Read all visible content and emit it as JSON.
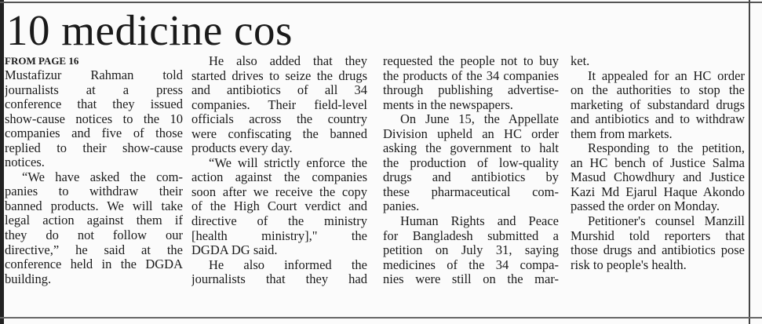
{
  "headline": "10 medicine cos",
  "kicker": "FROM PAGE 16",
  "columns": [
    [
      {
        "t": "Mustafizur Rahman told"
      },
      {
        "t": "journalists at a press"
      },
      {
        "t": "conference that they issued"
      },
      {
        "t": "show-cause notices to the 10"
      },
      {
        "t": "companies and five of those"
      },
      {
        "t": "replied to their show-cause"
      },
      {
        "t": "notices.",
        "last": true
      },
      {
        "t": "“We have asked the com-",
        "indent": true
      },
      {
        "t": "panies to withdraw their"
      },
      {
        "t": "banned products. We will take"
      },
      {
        "t": "legal action against them if"
      },
      {
        "t": "they do not follow our"
      },
      {
        "t": "directive,” he said at the"
      },
      {
        "t": "conference held in the DGDA"
      },
      {
        "t": "building.",
        "last": true
      }
    ],
    [
      {
        "t": "He also added that they",
        "indent": true
      },
      {
        "t": "started drives to seize the drugs"
      },
      {
        "t": "and antibiotics of all 34"
      },
      {
        "t": "companies. Their field-level"
      },
      {
        "t": "officials across the country"
      },
      {
        "t": "were confiscating the banned"
      },
      {
        "t": "products every day.",
        "last": true
      },
      {
        "t": "“We will strictly enforce the",
        "indent": true
      },
      {
        "t": "action against the companies"
      },
      {
        "t": "soon after we receive the copy"
      },
      {
        "t": "of the High Court verdict and"
      },
      {
        "t": "directive of the ministry"
      },
      {
        "t": "[health ministry],\" the"
      },
      {
        "t": "DGDA DG said.",
        "last": true
      },
      {
        "t": "He also informed the",
        "indent": true
      },
      {
        "t": "journalists that they had"
      }
    ],
    [
      {
        "t": "requested the people not to buy"
      },
      {
        "t": "the products of the 34 companies"
      },
      {
        "t": "through publishing advertise-"
      },
      {
        "t": "ments in the newspapers.",
        "last": true
      },
      {
        "t": "On June 15, the Appellate",
        "indent": true
      },
      {
        "t": "Division upheld an HC order"
      },
      {
        "t": "asking the government to halt"
      },
      {
        "t": "the production of low-quality"
      },
      {
        "t": "drugs and antibiotics by"
      },
      {
        "t": "these pharmaceutical com-"
      },
      {
        "t": "panies.",
        "last": true
      },
      {
        "t": "Human Rights and Peace",
        "indent": true
      },
      {
        "t": "for Bangladesh submitted a"
      },
      {
        "t": "petition on July 31, saying"
      },
      {
        "t": "medicines of the 34 compa-"
      },
      {
        "t": "nies were still on the mar-"
      }
    ],
    [
      {
        "t": "ket.",
        "last": true
      },
      {
        "t": "It appealed for an HC order",
        "indent": true
      },
      {
        "t": "on the authorities to stop the"
      },
      {
        "t": "marketing of substandard drugs"
      },
      {
        "t": "and antibiotics and to withdraw"
      },
      {
        "t": "them from markets.",
        "last": true
      },
      {
        "t": "Responding to the petition,",
        "indent": true
      },
      {
        "t": "an HC bench of Justice Salma"
      },
      {
        "t": "Masud Chowdhury and Justice"
      },
      {
        "t": "Kazi Md Ejarul Haque Akondo"
      },
      {
        "t": "passed the order on Monday.",
        "last": true
      },
      {
        "t": "Petitioner's counsel Manzill",
        "indent": true
      },
      {
        "t": "Murshid told reporters that"
      },
      {
        "t": "those drugs and antibiotics pose"
      },
      {
        "t": "risk to people's health.",
        "last": true
      }
    ]
  ]
}
